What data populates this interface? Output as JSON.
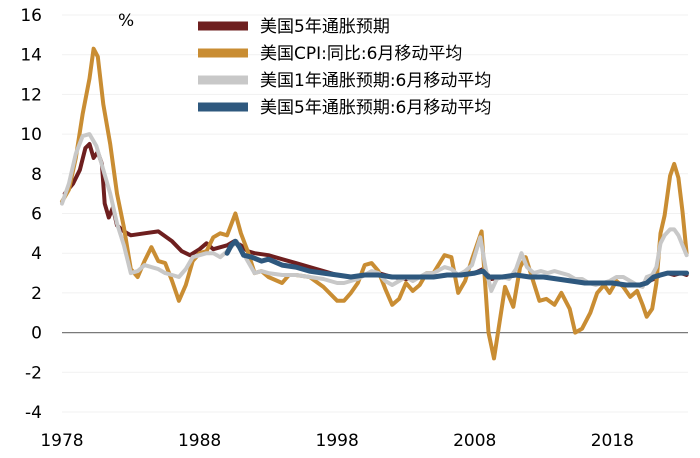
{
  "chart_data": {
    "type": "line",
    "unit_label": "%",
    "xlim": [
      1978,
      2023.5
    ],
    "ylim": [
      -4,
      16
    ],
    "x_ticks": [
      "1978",
      "1988",
      "1998",
      "2008",
      "2018"
    ],
    "y_ticks": [
      "16",
      "14",
      "12",
      "10",
      "8",
      "6",
      "4",
      "2",
      "0",
      "-2",
      "-4"
    ],
    "legend_position": "top-right",
    "series": [
      {
        "name": "美国5年通胀预期",
        "color": "#6e1f1f",
        "width": 4,
        "points": [
          [
            1978.2,
            7.0
          ],
          [
            1978.8,
            7.5
          ],
          [
            1979.3,
            8.2
          ],
          [
            1979.7,
            9.3
          ],
          [
            1980.0,
            9.5
          ],
          [
            1980.3,
            8.8
          ],
          [
            1980.6,
            9.1
          ],
          [
            1980.9,
            8.5
          ],
          [
            1981.1,
            6.5
          ],
          [
            1981.4,
            5.8
          ],
          [
            1981.7,
            6.3
          ],
          [
            1982.0,
            5.4
          ],
          [
            1982.5,
            5.1
          ],
          [
            1983.0,
            4.9
          ],
          [
            1984.0,
            5.0
          ],
          [
            1985.0,
            5.1
          ],
          [
            1986.0,
            4.6
          ],
          [
            1986.7,
            4.1
          ],
          [
            1987.3,
            3.9
          ],
          [
            1988.0,
            4.2
          ],
          [
            1988.5,
            4.5
          ],
          [
            1989.0,
            4.2
          ],
          [
            1990.0,
            4.4
          ],
          [
            1990.5,
            4.6
          ],
          [
            1991.0,
            4.4
          ],
          [
            1991.5,
            4.1
          ],
          [
            1992.0,
            4.0
          ],
          [
            1993.0,
            3.9
          ],
          [
            1994.0,
            3.7
          ],
          [
            1995.0,
            3.5
          ],
          [
            1996.0,
            3.3
          ],
          [
            1997.0,
            3.1
          ],
          [
            1998.0,
            2.9
          ],
          [
            1999.0,
            2.8
          ],
          [
            2000.0,
            2.9
          ],
          [
            2001.0,
            3.0
          ],
          [
            2002.0,
            2.8
          ],
          [
            2003.0,
            2.7
          ],
          [
            2004.0,
            2.8
          ],
          [
            2005.0,
            2.8
          ],
          [
            2006.0,
            2.9
          ],
          [
            2007.0,
            2.9
          ],
          [
            2008.0,
            3.0
          ],
          [
            2008.6,
            3.2
          ],
          [
            2009.2,
            2.7
          ],
          [
            2010.0,
            2.8
          ],
          [
            2011.0,
            2.9
          ],
          [
            2012.0,
            2.8
          ],
          [
            2013.0,
            2.8
          ],
          [
            2014.0,
            2.7
          ],
          [
            2015.0,
            2.6
          ],
          [
            2016.0,
            2.5
          ],
          [
            2017.0,
            2.5
          ],
          [
            2018.0,
            2.5
          ],
          [
            2019.0,
            2.4
          ],
          [
            2020.0,
            2.4
          ],
          [
            2021.0,
            2.7
          ],
          [
            2021.5,
            2.9
          ],
          [
            2022.0,
            3.0
          ],
          [
            2022.5,
            2.9
          ],
          [
            2023.0,
            3.0
          ],
          [
            2023.4,
            2.9
          ]
        ]
      },
      {
        "name": "美国CPI:同比:6月移动平均",
        "color": "#c98d33",
        "width": 4,
        "points": [
          [
            1978.0,
            6.6
          ],
          [
            1978.5,
            7.2
          ],
          [
            1979.0,
            8.8
          ],
          [
            1979.5,
            11.0
          ],
          [
            1980.0,
            12.8
          ],
          [
            1980.3,
            14.3
          ],
          [
            1980.6,
            13.9
          ],
          [
            1981.0,
            11.5
          ],
          [
            1981.5,
            9.5
          ],
          [
            1982.0,
            7.0
          ],
          [
            1982.5,
            5.3
          ],
          [
            1983.0,
            3.2
          ],
          [
            1983.5,
            2.8
          ],
          [
            1984.0,
            3.6
          ],
          [
            1984.5,
            4.3
          ],
          [
            1985.0,
            3.6
          ],
          [
            1985.5,
            3.5
          ],
          [
            1986.0,
            2.6
          ],
          [
            1986.5,
            1.6
          ],
          [
            1987.0,
            2.4
          ],
          [
            1987.5,
            3.6
          ],
          [
            1988.0,
            4.0
          ],
          [
            1988.5,
            4.1
          ],
          [
            1989.0,
            4.8
          ],
          [
            1989.5,
            5.0
          ],
          [
            1990.0,
            4.9
          ],
          [
            1990.6,
            6.0
          ],
          [
            1991.0,
            5.0
          ],
          [
            1991.5,
            4.1
          ],
          [
            1992.0,
            3.0
          ],
          [
            1992.5,
            3.1
          ],
          [
            1993.0,
            2.8
          ],
          [
            1994.0,
            2.5
          ],
          [
            1994.5,
            2.9
          ],
          [
            1995.0,
            2.9
          ],
          [
            1996.0,
            2.8
          ],
          [
            1997.0,
            2.3
          ],
          [
            1998.0,
            1.6
          ],
          [
            1998.5,
            1.6
          ],
          [
            1999.0,
            2.0
          ],
          [
            1999.5,
            2.5
          ],
          [
            2000.0,
            3.4
          ],
          [
            2000.5,
            3.5
          ],
          [
            2001.0,
            3.1
          ],
          [
            2001.5,
            2.2
          ],
          [
            2002.0,
            1.4
          ],
          [
            2002.5,
            1.7
          ],
          [
            2003.0,
            2.5
          ],
          [
            2003.5,
            2.1
          ],
          [
            2004.0,
            2.4
          ],
          [
            2004.5,
            3.0
          ],
          [
            2005.0,
            3.0
          ],
          [
            2005.8,
            3.9
          ],
          [
            2006.3,
            3.8
          ],
          [
            2006.8,
            2.0
          ],
          [
            2007.3,
            2.6
          ],
          [
            2007.8,
            3.7
          ],
          [
            2008.5,
            5.1
          ],
          [
            2009.0,
            0.0
          ],
          [
            2009.4,
            -1.3
          ],
          [
            2009.8,
            0.5
          ],
          [
            2010.2,
            2.3
          ],
          [
            2010.8,
            1.3
          ],
          [
            2011.3,
            3.3
          ],
          [
            2011.7,
            3.8
          ],
          [
            2012.2,
            2.7
          ],
          [
            2012.7,
            1.6
          ],
          [
            2013.2,
            1.7
          ],
          [
            2013.8,
            1.4
          ],
          [
            2014.3,
            2.0
          ],
          [
            2014.9,
            1.2
          ],
          [
            2015.3,
            0.0
          ],
          [
            2015.8,
            0.2
          ],
          [
            2016.4,
            1.0
          ],
          [
            2016.9,
            2.0
          ],
          [
            2017.4,
            2.4
          ],
          [
            2017.8,
            2.0
          ],
          [
            2018.3,
            2.6
          ],
          [
            2018.8,
            2.3
          ],
          [
            2019.3,
            1.8
          ],
          [
            2019.8,
            2.1
          ],
          [
            2020.2,
            1.4
          ],
          [
            2020.5,
            0.8
          ],
          [
            2020.9,
            1.2
          ],
          [
            2021.2,
            2.5
          ],
          [
            2021.5,
            5.0
          ],
          [
            2021.8,
            5.9
          ],
          [
            2022.2,
            7.9
          ],
          [
            2022.5,
            8.5
          ],
          [
            2022.8,
            7.8
          ],
          [
            2023.1,
            6.1
          ],
          [
            2023.4,
            4.0
          ]
        ]
      },
      {
        "name": "美国1年通胀预期:6月移动平均",
        "color": "#c8c8c8",
        "width": 4,
        "points": [
          [
            1978.0,
            6.5
          ],
          [
            1978.5,
            7.5
          ],
          [
            1979.0,
            9.0
          ],
          [
            1979.5,
            9.9
          ],
          [
            1980.0,
            10.0
          ],
          [
            1980.5,
            9.4
          ],
          [
            1981.0,
            8.2
          ],
          [
            1981.5,
            7.0
          ],
          [
            1982.0,
            5.5
          ],
          [
            1982.5,
            4.4
          ],
          [
            1983.0,
            3.0
          ],
          [
            1983.5,
            3.1
          ],
          [
            1984.0,
            3.4
          ],
          [
            1984.5,
            3.3
          ],
          [
            1985.0,
            3.2
          ],
          [
            1985.5,
            3.0
          ],
          [
            1986.0,
            2.9
          ],
          [
            1986.5,
            2.8
          ],
          [
            1987.0,
            3.2
          ],
          [
            1987.5,
            3.8
          ],
          [
            1988.0,
            3.9
          ],
          [
            1988.5,
            4.0
          ],
          [
            1989.0,
            4.0
          ],
          [
            1989.5,
            3.8
          ],
          [
            1990.0,
            4.1
          ],
          [
            1990.7,
            4.6
          ],
          [
            1991.0,
            4.2
          ],
          [
            1991.5,
            3.6
          ],
          [
            1992.0,
            3.0
          ],
          [
            1992.5,
            3.1
          ],
          [
            1993.0,
            3.0
          ],
          [
            1994.0,
            2.9
          ],
          [
            1995.0,
            2.9
          ],
          [
            1996.0,
            2.8
          ],
          [
            1997.0,
            2.7
          ],
          [
            1998.0,
            2.5
          ],
          [
            1998.5,
            2.5
          ],
          [
            1999.0,
            2.6
          ],
          [
            1999.5,
            2.7
          ],
          [
            2000.0,
            2.9
          ],
          [
            2000.5,
            3.1
          ],
          [
            2001.0,
            3.0
          ],
          [
            2001.5,
            2.6
          ],
          [
            2002.0,
            2.4
          ],
          [
            2002.5,
            2.6
          ],
          [
            2003.0,
            2.8
          ],
          [
            2003.5,
            2.6
          ],
          [
            2004.0,
            2.8
          ],
          [
            2004.5,
            3.0
          ],
          [
            2005.0,
            3.0
          ],
          [
            2005.8,
            3.3
          ],
          [
            2006.3,
            3.2
          ],
          [
            2006.8,
            2.9
          ],
          [
            2007.3,
            3.1
          ],
          [
            2007.8,
            3.4
          ],
          [
            2008.4,
            4.8
          ],
          [
            2008.8,
            3.2
          ],
          [
            2009.2,
            2.1
          ],
          [
            2009.6,
            2.7
          ],
          [
            2010.0,
            2.8
          ],
          [
            2010.5,
            2.7
          ],
          [
            2011.0,
            3.2
          ],
          [
            2011.4,
            4.0
          ],
          [
            2011.8,
            3.3
          ],
          [
            2012.3,
            3.0
          ],
          [
            2012.8,
            3.1
          ],
          [
            2013.3,
            3.0
          ],
          [
            2013.8,
            3.1
          ],
          [
            2014.3,
            3.0
          ],
          [
            2014.8,
            2.9
          ],
          [
            2015.3,
            2.7
          ],
          [
            2015.8,
            2.7
          ],
          [
            2016.3,
            2.5
          ],
          [
            2016.8,
            2.4
          ],
          [
            2017.3,
            2.5
          ],
          [
            2017.8,
            2.6
          ],
          [
            2018.3,
            2.8
          ],
          [
            2018.8,
            2.8
          ],
          [
            2019.3,
            2.6
          ],
          [
            2019.8,
            2.4
          ],
          [
            2020.2,
            2.3
          ],
          [
            2020.5,
            2.8
          ],
          [
            2020.9,
            2.9
          ],
          [
            2021.2,
            3.3
          ],
          [
            2021.5,
            4.5
          ],
          [
            2021.8,
            4.9
          ],
          [
            2022.2,
            5.2
          ],
          [
            2022.5,
            5.2
          ],
          [
            2022.8,
            4.9
          ],
          [
            2023.1,
            4.4
          ],
          [
            2023.4,
            3.9
          ]
        ]
      },
      {
        "name": "美国5年通胀预期:6月移动平均",
        "color": "#2e587e",
        "width": 5,
        "points": [
          [
            1990.0,
            4.0
          ],
          [
            1990.3,
            4.4
          ],
          [
            1990.6,
            4.6
          ],
          [
            1990.9,
            4.3
          ],
          [
            1991.2,
            3.9
          ],
          [
            1991.8,
            3.8
          ],
          [
            1992.5,
            3.6
          ],
          [
            1993.0,
            3.7
          ],
          [
            1994.0,
            3.4
          ],
          [
            1995.0,
            3.3
          ],
          [
            1996.0,
            3.1
          ],
          [
            1997.0,
            3.0
          ],
          [
            1998.0,
            2.9
          ],
          [
            1999.0,
            2.8
          ],
          [
            2000.0,
            2.9
          ],
          [
            2001.0,
            2.9
          ],
          [
            2002.0,
            2.8
          ],
          [
            2003.0,
            2.8
          ],
          [
            2004.0,
            2.8
          ],
          [
            2005.0,
            2.8
          ],
          [
            2006.0,
            2.9
          ],
          [
            2007.0,
            2.9
          ],
          [
            2008.0,
            3.0
          ],
          [
            2008.6,
            3.1
          ],
          [
            2009.0,
            2.8
          ],
          [
            2010.0,
            2.8
          ],
          [
            2011.0,
            2.9
          ],
          [
            2012.0,
            2.8
          ],
          [
            2013.0,
            2.8
          ],
          [
            2014.0,
            2.7
          ],
          [
            2015.0,
            2.6
          ],
          [
            2016.0,
            2.5
          ],
          [
            2017.0,
            2.5
          ],
          [
            2018.0,
            2.5
          ],
          [
            2019.0,
            2.4
          ],
          [
            2020.0,
            2.4
          ],
          [
            2020.5,
            2.5
          ],
          [
            2021.0,
            2.8
          ],
          [
            2021.5,
            2.9
          ],
          [
            2022.0,
            3.0
          ],
          [
            2022.5,
            3.0
          ],
          [
            2023.0,
            3.0
          ],
          [
            2023.4,
            3.0
          ]
        ]
      }
    ]
  }
}
